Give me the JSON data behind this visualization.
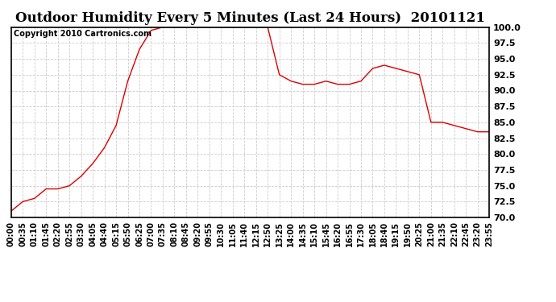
{
  "title": "Outdoor Humidity Every 5 Minutes (Last 24 Hours)  20101121",
  "copyright_text": "Copyright 2010 Cartronics.com",
  "ylim": [
    70.0,
    100.0
  ],
  "yticks": [
    70.0,
    72.5,
    75.0,
    77.5,
    80.0,
    82.5,
    85.0,
    87.5,
    90.0,
    92.5,
    95.0,
    97.5,
    100.0
  ],
  "line_color": "#dd0000",
  "grid_color": "#cccccc",
  "background_color": "#ffffff",
  "x_labels": [
    "00:00",
    "00:35",
    "01:10",
    "01:45",
    "02:20",
    "02:55",
    "03:30",
    "04:05",
    "04:40",
    "05:15",
    "05:50",
    "06:25",
    "07:00",
    "07:35",
    "08:10",
    "08:45",
    "09:20",
    "09:55",
    "10:30",
    "11:05",
    "11:40",
    "12:15",
    "12:50",
    "13:25",
    "14:00",
    "14:35",
    "15:10",
    "15:45",
    "16:20",
    "16:55",
    "17:30",
    "18:05",
    "18:40",
    "19:15",
    "19:50",
    "20:25",
    "21:00",
    "21:35",
    "22:10",
    "22:45",
    "23:20",
    "23:55"
  ],
  "humidity_values": [
    71.0,
    72.5,
    73.0,
    74.5,
    74.5,
    75.0,
    76.5,
    78.5,
    81.0,
    84.5,
    91.5,
    96.5,
    99.5,
    100.0,
    100.0,
    100.0,
    100.0,
    100.0,
    100.0,
    100.0,
    100.0,
    100.0,
    100.0,
    92.5,
    91.5,
    91.0,
    91.0,
    91.5,
    91.0,
    91.0,
    91.5,
    93.5,
    94.0,
    93.5,
    93.0,
    92.5,
    85.0,
    85.0,
    84.5,
    84.0,
    83.5,
    83.5
  ],
  "title_fontsize": 12,
  "copyright_fontsize": 7,
  "ytick_fontsize": 8,
  "xtick_fontsize": 7
}
